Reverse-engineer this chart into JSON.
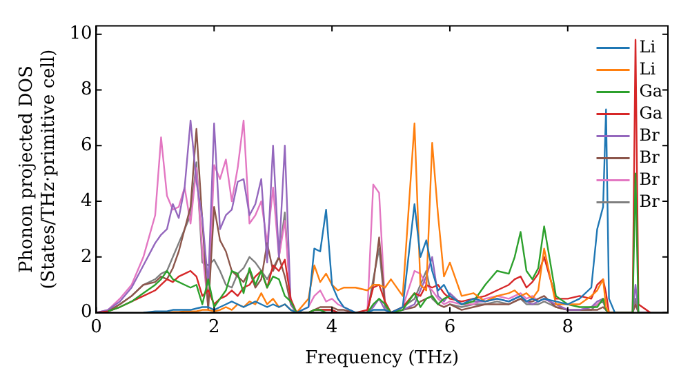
{
  "chart_data": {
    "type": "line",
    "xlabel": "Frequency (THz)",
    "ylabel": "Phonon projected DOS\n(States/THz·primitive cell)",
    "x": [
      0,
      0.2,
      0.4,
      0.6,
      0.8,
      1.0,
      1.1,
      1.2,
      1.3,
      1.4,
      1.5,
      1.6,
      1.7,
      1.8,
      1.9,
      2.0,
      2.1,
      2.2,
      2.3,
      2.4,
      2.5,
      2.6,
      2.7,
      2.8,
      2.9,
      3.0,
      3.1,
      3.2,
      3.3,
      3.4,
      3.6,
      3.7,
      3.8,
      3.9,
      4.0,
      4.1,
      4.2,
      4.4,
      4.6,
      4.7,
      4.8,
      4.9,
      5.0,
      5.2,
      5.4,
      5.5,
      5.6,
      5.7,
      5.8,
      5.9,
      6.0,
      6.2,
      6.4,
      6.6,
      6.8,
      7.0,
      7.1,
      7.2,
      7.3,
      7.4,
      7.5,
      7.6,
      7.8,
      8.0,
      8.2,
      8.4,
      8.5,
      8.6,
      8.65,
      8.7,
      8.8,
      9.0,
      9.1,
      9.15,
      9.2,
      9.4,
      9.6
    ],
    "series": [
      {
        "name": "Li",
        "color": "#1f77b4",
        "values": [
          null,
          null,
          null,
          null,
          0,
          0.05,
          0.05,
          0.05,
          0.1,
          0.1,
          0.1,
          0.1,
          0.15,
          0.2,
          0.2,
          0.1,
          0.2,
          0.3,
          0.4,
          0.3,
          0.2,
          0.3,
          0.4,
          0.3,
          0.2,
          0.3,
          0.2,
          0.3,
          0.1,
          0,
          0.2,
          2.3,
          2.2,
          3.7,
          1.0,
          0.5,
          0.2,
          0,
          0,
          0.1,
          0.1,
          0.1,
          0,
          0.2,
          3.9,
          2.0,
          2.6,
          1.5,
          0.8,
          1.0,
          0.6,
          0.3,
          0.5,
          0.4,
          0.5,
          0.4,
          0.5,
          0.6,
          0.4,
          0.5,
          0.4,
          0.5,
          0.4,
          0.3,
          0.5,
          0.9,
          3.0,
          3.8,
          7.3,
          0.5,
          0,
          null,
          null,
          null,
          null,
          null,
          null
        ]
      },
      {
        "name": "Li",
        "color": "#ff7f0e",
        "values": [
          null,
          null,
          null,
          null,
          null,
          null,
          0,
          0,
          0.02,
          0.02,
          0.05,
          0.05,
          0.05,
          0.1,
          0.1,
          0.05,
          0.1,
          0.2,
          0.1,
          0.3,
          0.2,
          0.4,
          0.3,
          0.7,
          0.3,
          0.5,
          0.2,
          0.3,
          0.1,
          0,
          0.5,
          1.7,
          1.1,
          1.4,
          1.0,
          0.8,
          0.9,
          0.9,
          0.8,
          1.0,
          1.0,
          0.9,
          1.2,
          0.6,
          6.8,
          1.0,
          0.8,
          6.1,
          3.5,
          1.3,
          1.8,
          0.6,
          0.7,
          0.4,
          0.6,
          0.7,
          0.8,
          0.6,
          0.7,
          0.5,
          0.8,
          2.3,
          0.3,
          0.3,
          0.3,
          0.6,
          0.8,
          1.2,
          0.2,
          0,
          0,
          null,
          null,
          null,
          null,
          null,
          null
        ]
      },
      {
        "name": "Ga",
        "color": "#2ca02c",
        "values": [
          null,
          0.05,
          0.2,
          0.4,
          0.7,
          1.0,
          1.2,
          1.5,
          1.2,
          1.1,
          1.0,
          0.9,
          1.0,
          0.3,
          1.2,
          0.2,
          0.5,
          0.8,
          1.5,
          1.4,
          0.7,
          1.6,
          1.0,
          1.5,
          0.9,
          1.3,
          1.2,
          0.6,
          0.4,
          0,
          0,
          0.1,
          0.1,
          0,
          null,
          null,
          null,
          0,
          0,
          0.3,
          0.5,
          0.3,
          0,
          0.1,
          0.7,
          0.2,
          0.5,
          0.6,
          0.3,
          0.5,
          0.6,
          0.3,
          0.4,
          1.0,
          1.5,
          1.4,
          2.0,
          2.9,
          1.5,
          1.2,
          1.6,
          3.1,
          0.6,
          0.3,
          0.2,
          0.2,
          0.2,
          0.5,
          0.1,
          0,
          0,
          0,
          0,
          5.0,
          0,
          null,
          null
        ]
      },
      {
        "name": "Ga",
        "color": "#d62728",
        "values": [
          0,
          0.05,
          0.2,
          0.4,
          0.6,
          0.8,
          1.0,
          1.2,
          1.1,
          1.3,
          1.4,
          1.5,
          1.3,
          0.6,
          0.8,
          0.3,
          0.5,
          0.6,
          0.8,
          0.6,
          0.9,
          1.0,
          1.3,
          1.5,
          0.9,
          1.7,
          1.5,
          1.9,
          0.5,
          0,
          0,
          0.1,
          0.1,
          0.1,
          0.1,
          0,
          0,
          0,
          0.1,
          0.9,
          1.0,
          0.4,
          0,
          0.2,
          0.7,
          0.6,
          1.0,
          0.9,
          1.0,
          0.7,
          0.5,
          0.4,
          0.5,
          0.6,
          0.8,
          1.0,
          1.2,
          1.3,
          0.9,
          1.1,
          1.4,
          2.0,
          0.5,
          0.5,
          0.6,
          0.5,
          1.0,
          1.2,
          0.7,
          0,
          0,
          0,
          0,
          9.8,
          0.3,
          0,
          null
        ]
      },
      {
        "name": "Br",
        "color": "#9467bd",
        "values": [
          0,
          0.1,
          0.4,
          0.9,
          1.7,
          2.5,
          2.8,
          3.0,
          3.9,
          3.4,
          4.5,
          6.9,
          4.7,
          3.4,
          1.0,
          6.8,
          3.0,
          3.5,
          3.7,
          4.7,
          4.8,
          3.5,
          3.9,
          4.8,
          1.8,
          6.0,
          2.0,
          6.0,
          0.3,
          0,
          0,
          0,
          0,
          0,
          0,
          0,
          0,
          0,
          0,
          0.2,
          0.5,
          0.1,
          0,
          0.1,
          0.3,
          0.8,
          1.3,
          2.0,
          0.6,
          0.4,
          0.7,
          0.3,
          0.4,
          0.4,
          0.5,
          0.4,
          0.5,
          0.6,
          0.4,
          0.3,
          0.4,
          0.5,
          0.3,
          0.1,
          0.1,
          0.2,
          0.4,
          0.5,
          0.1,
          0,
          0,
          0,
          0,
          1.0,
          0,
          0,
          null
        ]
      },
      {
        "name": "Br",
        "color": "#8c564b",
        "values": [
          0,
          0.05,
          0.3,
          0.6,
          1.0,
          1.1,
          1.3,
          1.2,
          1.6,
          2.2,
          3.0,
          3.8,
          6.6,
          3.3,
          0.1,
          3.8,
          2.6,
          2.2,
          1.5,
          1.3,
          1.1,
          1.5,
          0.9,
          1.2,
          2.5,
          1.5,
          2.0,
          1.3,
          0.3,
          0,
          0,
          0.1,
          0.2,
          0.2,
          0.2,
          0.1,
          0.1,
          0,
          0,
          1.0,
          2.7,
          0.3,
          0,
          0.1,
          0.2,
          0.4,
          0.5,
          0.6,
          0.3,
          0.2,
          0.3,
          0.1,
          0.2,
          0.3,
          0.3,
          0.3,
          0.4,
          0.5,
          0.4,
          0.4,
          0.5,
          0.6,
          0.2,
          0.1,
          0.1,
          0.1,
          0.1,
          0.2,
          0.1,
          0,
          0,
          0,
          0,
          0.3,
          0,
          0,
          null
        ]
      },
      {
        "name": "Br",
        "color": "#e377c2",
        "values": [
          0,
          0.1,
          0.5,
          1.0,
          2.0,
          3.5,
          6.3,
          4.2,
          3.7,
          3.8,
          4.5,
          3.2,
          5.2,
          2.2,
          0.2,
          5.3,
          4.8,
          5.5,
          4.0,
          5.2,
          6.9,
          3.2,
          3.5,
          4.0,
          2.5,
          4.5,
          2.0,
          3.3,
          0.4,
          0,
          0.2,
          0.6,
          0.8,
          0.4,
          0.5,
          0.3,
          0.2,
          0,
          0,
          4.6,
          4.3,
          0.3,
          0,
          0.2,
          1.5,
          1.4,
          1.0,
          0.8,
          0.5,
          0.3,
          0.4,
          0.3,
          0.3,
          0.5,
          0.6,
          0.5,
          0.6,
          0.7,
          0.5,
          0.6,
          0.4,
          0.5,
          0.3,
          0.1,
          0.1,
          0.2,
          0.3,
          0.5,
          0.1,
          0,
          0,
          0,
          0,
          0.3,
          0,
          0,
          null
        ]
      },
      {
        "name": "Br",
        "color": "#7f7f7f",
        "values": [
          0,
          0.05,
          0.3,
          0.6,
          1.0,
          1.2,
          1.4,
          1.5,
          2.0,
          2.5,
          3.0,
          3.5,
          5.4,
          1.8,
          1.7,
          1.9,
          1.5,
          1.0,
          0.9,
          1.4,
          1.6,
          2.0,
          1.8,
          1.5,
          1.2,
          1.6,
          2.0,
          3.6,
          0.3,
          0,
          0,
          0.1,
          0.1,
          0.1,
          0.1,
          0,
          0,
          0,
          0,
          1.2,
          2.3,
          0.2,
          0,
          0.2,
          0.5,
          1.0,
          1.5,
          0.5,
          0.3,
          0.2,
          0.3,
          0.2,
          0.3,
          0.3,
          0.4,
          0.3,
          0.4,
          0.5,
          0.3,
          0.3,
          0.3,
          0.4,
          0.2,
          0.1,
          0.1,
          0.1,
          0.3,
          0.4,
          0.1,
          0,
          0,
          0,
          0,
          0.5,
          0,
          0,
          0
        ]
      }
    ],
    "xlim": [
      0,
      9.7
    ],
    "ylim": [
      0,
      10.3
    ],
    "xticks": [
      0,
      2,
      4,
      6,
      8
    ],
    "yticks": [
      0,
      2,
      4,
      6,
      8,
      10
    ],
    "grid": false,
    "legend": "top right",
    "marker": "none",
    "line_style": "solid"
  }
}
